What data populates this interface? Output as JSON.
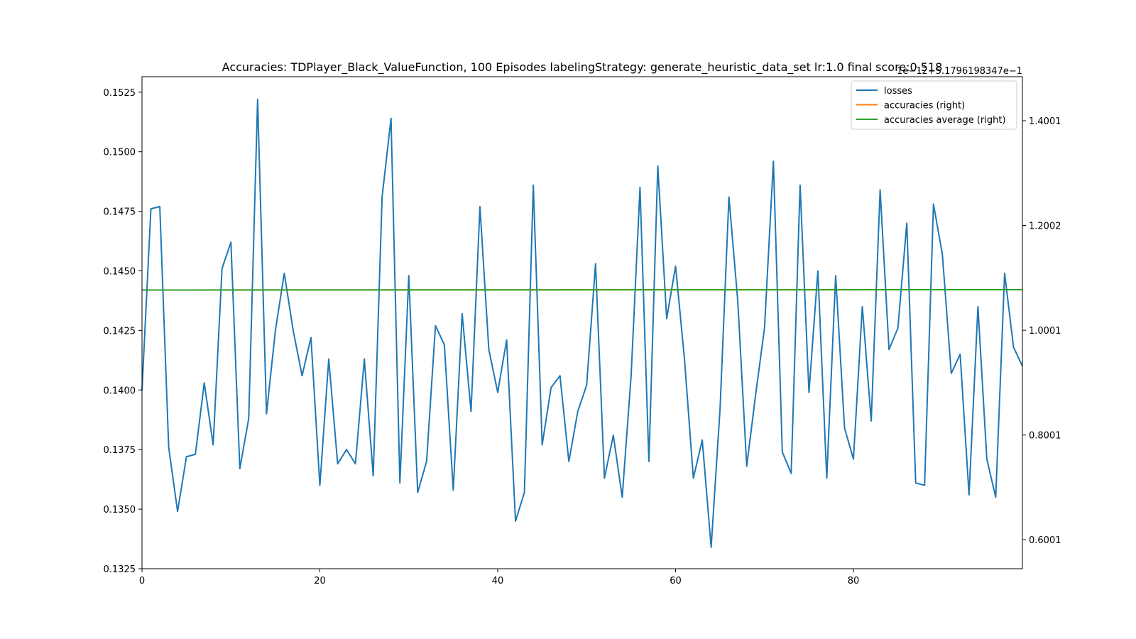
{
  "chart_data": {
    "type": "line",
    "title": "Accuracies: TDPlayer_Black_ValueFunction, 100 Episodes labelingStrategy: generate_heuristic_data_set lr:1.0 final score:0.518",
    "right_axis_offset_text": "1e−12+5.1796198347e−1",
    "xlim": [
      0,
      99
    ],
    "x_ticks": [
      0,
      20,
      40,
      60,
      80
    ],
    "left_ylim": [
      0.1325,
      0.15315
    ],
    "left_y_ticks": [
      "0.1325",
      "0.1350",
      "0.1375",
      "0.1400",
      "0.1425",
      "0.1450",
      "0.1475",
      "0.1500",
      "0.1525"
    ],
    "right_ylim": [
      0.5448,
      1.4842
    ],
    "right_y_ticks": [
      "0.6001",
      "0.8001",
      "1.0001",
      "1.2002",
      "1.4001"
    ],
    "legend_position": "top-right",
    "legend": [
      "losses",
      "accuracies (right)",
      "accuracies average (right)"
    ],
    "series": [
      {
        "name": "losses",
        "axis": "left",
        "color": "#1f77b4",
        "values": [
          0.14,
          0.1476,
          0.1477,
          0.1376,
          0.1349,
          0.1372,
          0.1373,
          0.1403,
          0.1377,
          0.1451,
          0.1462,
          0.1367,
          0.1388,
          0.1522,
          0.139,
          0.1425,
          0.1449,
          0.1425,
          0.1406,
          0.1422,
          0.136,
          0.1413,
          0.1369,
          0.1375,
          0.1369,
          0.1413,
          0.1364,
          0.1481,
          0.1514,
          0.1361,
          0.1448,
          0.1357,
          0.137,
          0.1427,
          0.1419,
          0.1358,
          0.1432,
          0.1391,
          0.1477,
          0.1417,
          0.1399,
          0.1421,
          0.1345,
          0.1357,
          0.1486,
          0.1377,
          0.1401,
          0.1406,
          0.137,
          0.1391,
          0.1402,
          0.1453,
          0.1363,
          0.1381,
          0.1355,
          0.1406,
          0.1485,
          0.137,
          0.1494,
          0.143,
          0.1452,
          0.1413,
          0.1363,
          0.1379,
          0.1334,
          0.1392,
          0.1481,
          0.1437,
          0.1368,
          0.1398,
          0.1426,
          0.1496,
          0.1374,
          0.1365,
          0.1486,
          0.1399,
          0.145,
          0.1363,
          0.1448,
          0.1384,
          0.1371,
          0.1435,
          0.1387,
          0.1484,
          0.1417,
          0.1426,
          0.147,
          0.1361,
          0.136,
          0.1478,
          0.1457,
          0.1407,
          0.1415,
          0.1356,
          0.1435,
          0.1371,
          0.1355,
          0.1449,
          0.1418,
          0.141
        ]
      },
      {
        "name": "accuracies (right)",
        "axis": "right",
        "color": "#ff7f0e",
        "x": [
          0,
          99
        ],
        "values": [
          1.0769,
          1.0776
        ]
      },
      {
        "name": "accuracies average (right)",
        "axis": "right",
        "color": "#2ca02c",
        "x": [
          0,
          99
        ],
        "values": [
          1.0769,
          1.0776
        ]
      }
    ]
  }
}
